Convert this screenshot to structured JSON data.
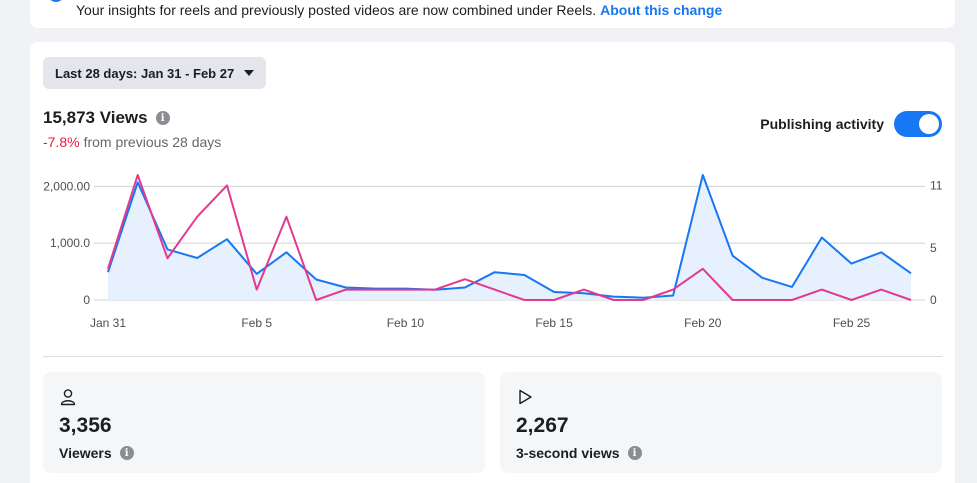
{
  "notice": {
    "text": "Your insights for reels and previously posted videos are now combined under Reels.",
    "link": "About this change"
  },
  "date_range": {
    "label": "Last 28 days: Jan 31 - Feb 27"
  },
  "metric": {
    "value": "15,873 Views",
    "change_pct": "-7.8%",
    "change_suffix": "from previous 28 days"
  },
  "publishing": {
    "label": "Publishing activity",
    "enabled": true
  },
  "chart_data": {
    "type": "line",
    "x": [
      "Jan 31",
      "Feb 1",
      "Feb 2",
      "Feb 3",
      "Feb 4",
      "Feb 5",
      "Feb 6",
      "Feb 7",
      "Feb 8",
      "Feb 9",
      "Feb 10",
      "Feb 11",
      "Feb 12",
      "Feb 13",
      "Feb 14",
      "Feb 15",
      "Feb 16",
      "Feb 17",
      "Feb 18",
      "Feb 19",
      "Feb 20",
      "Feb 21",
      "Feb 22",
      "Feb 23",
      "Feb 24",
      "Feb 25",
      "Feb 26",
      "Feb 27"
    ],
    "x_ticks": [
      "Jan 31",
      "Feb 5",
      "Feb 10",
      "Feb 15",
      "Feb 20",
      "Feb 25"
    ],
    "y_left_ticks": [
      "2,000.00",
      "1,000.0",
      "0"
    ],
    "y_left_range": [
      0,
      2200
    ],
    "y_right_ticks": [
      "11",
      "5",
      "0"
    ],
    "y_right_range": [
      0,
      12
    ],
    "series": [
      {
        "axis": "left",
        "color": "#1877f2",
        "fill": "#e7f0fd",
        "values": [
          490,
          2070,
          890,
          740,
          1070,
          460,
          840,
          360,
          220,
          200,
          200,
          180,
          220,
          490,
          440,
          140,
          120,
          60,
          40,
          80,
          2200,
          780,
          390,
          230,
          1100,
          640,
          840,
          470
        ]
      },
      {
        "axis": "right",
        "color": "#e4398f",
        "values": [
          3,
          12,
          4,
          8,
          11,
          1,
          8,
          0,
          1,
          1,
          1,
          1,
          2,
          1,
          0,
          0,
          1,
          0,
          0,
          1,
          3,
          0,
          0,
          0,
          1,
          0,
          1,
          0
        ]
      }
    ],
    "grid": true
  },
  "stats": [
    {
      "icon": "person-icon",
      "value": "3,356",
      "label": "Viewers"
    },
    {
      "icon": "play-icon",
      "value": "2,267",
      "label": "3-second views"
    }
  ]
}
